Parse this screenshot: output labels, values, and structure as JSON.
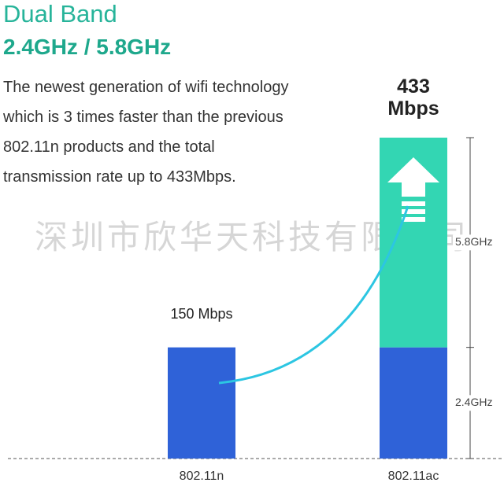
{
  "header": {
    "title": "Dual Band",
    "subtitle": "2.4GHz / 5.8GHz"
  },
  "description": [
    "The newest generation of wifi technology",
    "which is 3 times faster than the previous",
    "802.11n products and the total",
    "transmission rate up to 433Mbps."
  ],
  "watermark": "深圳市欣华天科技有限公司",
  "chart_data": {
    "type": "bar",
    "stacked": true,
    "categories": [
      "802.11n",
      "802.11ac"
    ],
    "series": [
      {
        "name": "2.4GHz",
        "color": "#2f62d8",
        "values": [
          150,
          150
        ]
      },
      {
        "name": "5.8GHz",
        "color": "#33d6b3",
        "values": [
          null,
          283
        ]
      }
    ],
    "total_labels": [
      {
        "value": 150,
        "label": "150 Mbps"
      },
      {
        "value": 433,
        "label": "433 Mbps"
      }
    ]
  }
}
